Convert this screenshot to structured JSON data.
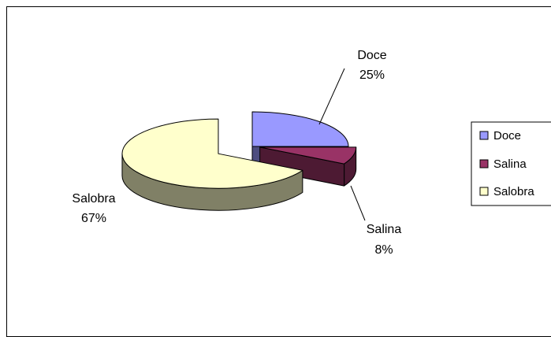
{
  "chart_data": {
    "type": "pie",
    "title": "",
    "style": "3d-exploded",
    "categories": [
      "Doce",
      "Salina",
      "Salobra"
    ],
    "values": [
      25,
      8,
      67
    ],
    "percent_labels": [
      "25%",
      "8%",
      "67%"
    ],
    "colors": {
      "Doce": {
        "top": "#9999ff",
        "side": "#4d4d80"
      },
      "Salina": {
        "top": "#993366",
        "side": "#4d1a33"
      },
      "Salobra": {
        "top": "#ffffcc",
        "side": "#808066"
      }
    },
    "legend": {
      "position": "right",
      "entries": [
        "Doce",
        "Salina",
        "Salobra"
      ]
    }
  }
}
